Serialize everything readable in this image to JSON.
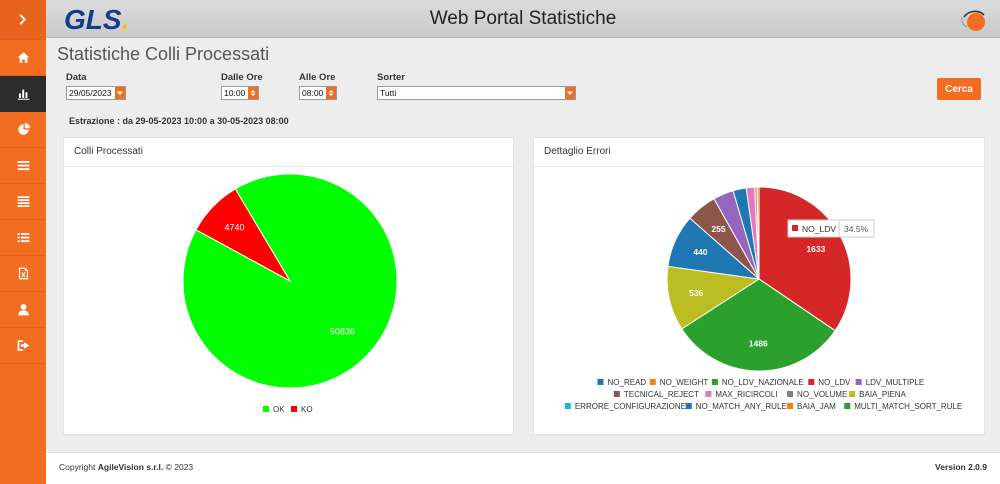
{
  "header": {
    "logo_text": "GLS",
    "logo_dot": ".",
    "title": "Web Portal Statistiche"
  },
  "page_title": "Statistiche Colli Processati",
  "filters": {
    "data_label": "Data",
    "data_value": "29/05/2023",
    "dalle_label": "Dalle Ore",
    "dalle_value": "10:00",
    "alle_label": "Alle Ore",
    "alle_value": "08:00",
    "sorter_label": "Sorter",
    "sorter_value": "Tutti",
    "search_label": "Cerca"
  },
  "estrazione": "Estrazione : da 29-05-2023 10:00 a 30-05-2023 08:00",
  "sidebar": {
    "items": [
      "toggle",
      "home",
      "bar-chart",
      "pie-chart",
      "list",
      "list-alt",
      "tasks",
      "file-excel",
      "user",
      "logout"
    ],
    "active_index": 2
  },
  "colors": {
    "accent": "#f26d21",
    "brand_blue": "#123c8a"
  },
  "chart_data": [
    {
      "type": "pie",
      "title": "Colli Processati",
      "categories": [
        "OK",
        "KO"
      ],
      "values": [
        50836,
        4740
      ],
      "colors": [
        "#00ff00",
        "#ff0000"
      ],
      "legend_placement": "bottom"
    },
    {
      "type": "pie",
      "title": "Dettaglio Errori",
      "categories": [
        "NO_READ",
        "NO_WEIGHT",
        "NO_LDV_NAZIONALE",
        "NO_LDV",
        "LDV_MULTIPLE",
        "TECNICAL_REJECT",
        "MAX_RICIRCOLI",
        "NO_VOLUME",
        "BAIA_PIENA",
        "ERRORE_CONFIGURAZIONE",
        "NO_MATCH_ANY_RULE",
        "BAIA_JAM",
        "MULTI_MATCH_SORT_RULE"
      ],
      "legend_colors": [
        "#1f77b4",
        "#ff7f0e",
        "#2ca02c",
        "#d62728",
        "#9467bd",
        "#8c564b",
        "#e377c2",
        "#7f7f7f",
        "#bcbd22",
        "#17becf",
        "#1f77b4",
        "#ff7f0e",
        "#2ca02c"
      ],
      "slices": [
        {
          "name": "NO_LDV",
          "value": 1633,
          "label": "1633",
          "color": "#d62728"
        },
        {
          "name": "NO_LDV_NAZIONALE",
          "value": 1486,
          "label": "1486",
          "color": "#2ca02c"
        },
        {
          "name": "BAIA_PIENA",
          "value": 536,
          "label": "536",
          "color": "#bcbd22"
        },
        {
          "name": "NO_READ",
          "value": 440,
          "label": "440",
          "color": "#1f77b4"
        },
        {
          "name": "TECNICAL_REJECT",
          "value": 255,
          "label": "255",
          "color": "#8c564b"
        },
        {
          "name": "LDV_MULTIPLE",
          "value": 170,
          "label": "",
          "color": "#9467bd"
        },
        {
          "name": "NO_MATCH_ANY_RULE",
          "value": 110,
          "label": "",
          "color": "#1f77b4"
        },
        {
          "name": "MAX_RICIRCOLI",
          "value": 70,
          "label": "",
          "color": "#e377c2"
        },
        {
          "name": "NO_WEIGHT",
          "value": 20,
          "label": "",
          "color": "#ff7f0e"
        },
        {
          "name": "NO_VOLUME",
          "value": 15,
          "label": "",
          "color": "#7f7f7f"
        }
      ],
      "tooltip": {
        "name": "NO_LDV",
        "percent": "34.5%"
      },
      "legend_placement": "bottom"
    }
  ],
  "footer": {
    "copyright_prefix": "Copyright ",
    "copyright_company": "AgileVision s.r.l.",
    "copyright_suffix": " © 2023",
    "version": "Version 2.0.9"
  }
}
